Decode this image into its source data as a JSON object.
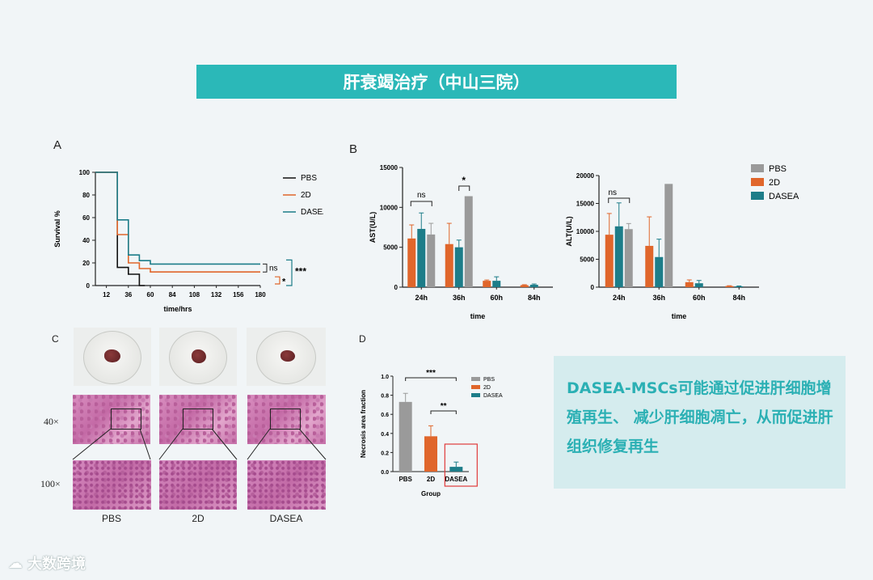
{
  "banner": {
    "title": "肝衰竭治疗（中山三院）"
  },
  "panels": {
    "a": "A",
    "b": "B",
    "c": "C",
    "d": "D"
  },
  "note": {
    "text": "DASEA-MSCs可能通过促进肝细胞增殖再生、 减少肝细胞凋亡，从而促进肝组织修复再生"
  },
  "watermark": {
    "text": "大数跨境"
  },
  "photo_panel": {
    "magnifications": [
      "40×",
      "100×"
    ],
    "groups": [
      "PBS",
      "2D",
      "DASEA"
    ]
  },
  "colors": {
    "pbs_black": "#111111",
    "pbs_gray": "#9a9a9a",
    "d2": "#e0662b",
    "dasea": "#1d7d89",
    "banner": "#2bb8b8"
  },
  "chart_data": [
    {
      "type": "line",
      "panel": "A",
      "xlabel": "time/hrs",
      "ylabel": "Survival %",
      "xticks": [
        12,
        36,
        60,
        84,
        108,
        132,
        156,
        180
      ],
      "yticks": [
        0,
        20,
        40,
        60,
        80,
        100
      ],
      "xlim": [
        0,
        180
      ],
      "ylim": [
        0,
        100
      ],
      "legend": {
        "placement": "top-right",
        "entries": [
          "PBS",
          "2D",
          "DASEA"
        ]
      },
      "annotations": [
        "ns",
        "*",
        "***"
      ],
      "series": [
        {
          "name": "PBS",
          "color": "#111111",
          "steps": [
            [
              0,
              100
            ],
            [
              24,
              100
            ],
            [
              24,
              16
            ],
            [
              36,
              16
            ],
            [
              36,
              10
            ],
            [
              48,
              10
            ],
            [
              48,
              0
            ],
            [
              54,
              0
            ]
          ]
        },
        {
          "name": "2D",
          "color": "#e0662b",
          "steps": [
            [
              0,
              100
            ],
            [
              24,
              100
            ],
            [
              24,
              45
            ],
            [
              36,
              45
            ],
            [
              36,
              20
            ],
            [
              48,
              20
            ],
            [
              48,
              15
            ],
            [
              60,
              15
            ],
            [
              60,
              12
            ],
            [
              180,
              12
            ]
          ]
        },
        {
          "name": "DASEA",
          "color": "#1d7d89",
          "steps": [
            [
              0,
              100
            ],
            [
              24,
              100
            ],
            [
              24,
              58
            ],
            [
              36,
              58
            ],
            [
              36,
              27
            ],
            [
              48,
              27
            ],
            [
              48,
              22
            ],
            [
              60,
              22
            ],
            [
              60,
              19
            ],
            [
              180,
              19
            ]
          ]
        }
      ]
    },
    {
      "type": "bar",
      "panel": "B",
      "ylabel": "AST(U/L)",
      "xlabel": "time",
      "categories": [
        "24h",
        "36h",
        "60h",
        "84h"
      ],
      "ylim": [
        0,
        15000
      ],
      "yticks": [
        0,
        5000,
        10000,
        15000
      ],
      "annotations": [
        {
          "text": "ns",
          "category": "24h"
        },
        {
          "text": "*",
          "category": "36h"
        }
      ],
      "series": [
        {
          "name": "2D",
          "color": "#e0662b",
          "values": [
            6100,
            5400,
            800,
            250
          ],
          "errors": [
            1700,
            2600,
            100,
            60
          ]
        },
        {
          "name": "DASEA",
          "color": "#1d7d89",
          "values": [
            7300,
            5000,
            800,
            300
          ],
          "errors": [
            2000,
            900,
            500,
            100
          ]
        },
        {
          "name": "PBS",
          "color": "#9a9a9a",
          "values": [
            6600,
            11400,
            0,
            0
          ],
          "errors": [
            1400,
            0,
            0,
            0
          ]
        }
      ]
    },
    {
      "type": "bar",
      "panel": "B",
      "ylabel": "ALT(U/L)",
      "xlabel": "time",
      "categories": [
        "24h",
        "36h",
        "60h",
        "84h"
      ],
      "ylim": [
        0,
        20000
      ],
      "yticks": [
        0,
        5000,
        10000,
        15000,
        20000
      ],
      "legend": {
        "placement": "top-right",
        "entries": [
          "PBS",
          "2D",
          "DASEA"
        ]
      },
      "annotations": [
        {
          "text": "ns",
          "category": "24h"
        }
      ],
      "series": [
        {
          "name": "2D",
          "color": "#e0662b",
          "values": [
            9400,
            7400,
            900,
            200
          ],
          "errors": [
            3800,
            5200,
            400,
            60
          ]
        },
        {
          "name": "DASEA",
          "color": "#1d7d89",
          "values": [
            10900,
            5400,
            700,
            150
          ],
          "errors": [
            4200,
            3200,
            500,
            60
          ]
        },
        {
          "name": "PBS",
          "color": "#9a9a9a",
          "values": [
            10400,
            18500,
            0,
            0
          ],
          "errors": [
            1000,
            0,
            0,
            0
          ]
        }
      ]
    },
    {
      "type": "bar",
      "panel": "D",
      "ylabel": "Necrosis area fraction",
      "xlabel": "Group",
      "categories": [
        "PBS",
        "2D",
        "DASEA"
      ],
      "ylim": [
        0,
        1.0
      ],
      "yticks": [
        0.0,
        0.2,
        0.4,
        0.6,
        0.8,
        1.0
      ],
      "legend": {
        "placement": "top-right",
        "entries": [
          "PBS",
          "2D",
          "DASEA"
        ]
      },
      "annotations": [
        "***",
        "**"
      ],
      "series": [
        {
          "name": "",
          "colors": [
            "#9a9a9a",
            "#e0662b",
            "#1d7d89"
          ],
          "values": [
            0.73,
            0.37,
            0.05
          ],
          "errors": [
            0.09,
            0.11,
            0.05
          ]
        }
      ]
    }
  ]
}
